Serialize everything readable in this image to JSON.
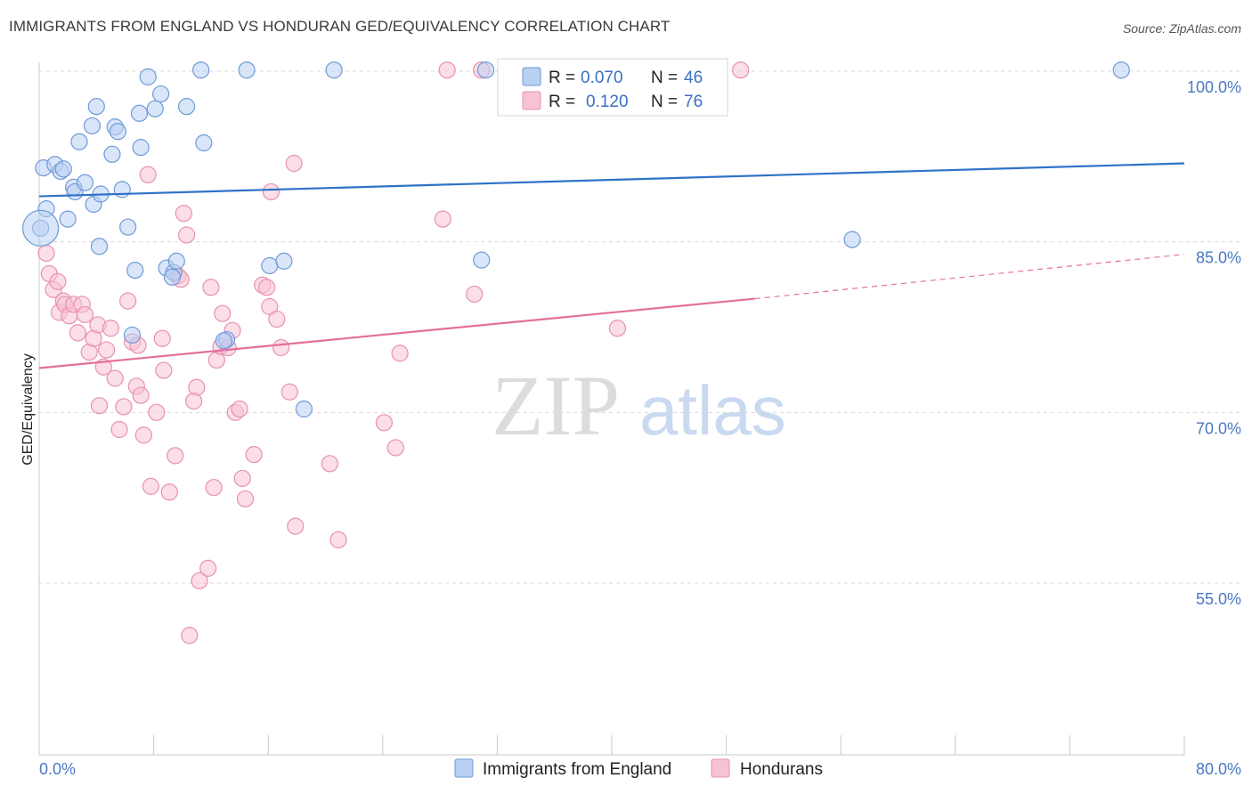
{
  "title": "IMMIGRANTS FROM ENGLAND VS HONDURAN GED/EQUIVALENCY CORRELATION CHART",
  "source": "Source: ZipAtlas.com",
  "watermark": {
    "zip": "ZIP",
    "atlas": "atlas"
  },
  "colors": {
    "blue_fill": "#b9d0f2",
    "blue_stroke": "#6f9ad8",
    "blue_line": "#2f72c8",
    "pink_fill": "#f7c2d3",
    "pink_stroke": "#e891ae",
    "pink_line": "#e46f9a",
    "grid": "#d8d8d8",
    "axis_label": "#4a78c2"
  },
  "legend": {
    "rows": [
      {
        "r_label": "R =",
        "r_value": "0.070",
        "n_label": "N =",
        "n_value": "46",
        "series": "blue"
      },
      {
        "r_label": "R =",
        "r_value": "0.120",
        "n_label": "N =",
        "n_value": "76",
        "series": "pink"
      }
    ]
  },
  "chart_data": {
    "type": "scatter",
    "xlabel": "",
    "ylabel": "GED/Equivalency",
    "xlim": [
      0,
      80
    ],
    "ylim": [
      40,
      102
    ],
    "x_tick_labels": [
      "0.0%",
      "80.0%"
    ],
    "y_ticks": [
      55,
      70,
      85,
      100
    ],
    "y_tick_labels": [
      "55.0%",
      "70.0%",
      "85.0%",
      "100.0%"
    ],
    "grid": true,
    "legend_placement": "top-center",
    "series": [
      {
        "name": "Immigrants from England",
        "color": "blue",
        "trend": {
          "x0": 0,
          "y0": 89.0,
          "x1": 80,
          "y1": 91.9
        },
        "points": [
          [
            0.3,
            91.5
          ],
          [
            1.1,
            91.8
          ],
          [
            1.5,
            91.2
          ],
          [
            1.7,
            91.4
          ],
          [
            2.4,
            89.8
          ],
          [
            2.5,
            89.4
          ],
          [
            3.2,
            90.2
          ],
          [
            2.8,
            93.8
          ],
          [
            3.7,
            95.2
          ],
          [
            4.0,
            96.9
          ],
          [
            3.8,
            88.3
          ],
          [
            4.3,
            89.2
          ],
          [
            4.2,
            84.6
          ],
          [
            5.1,
            92.7
          ],
          [
            5.3,
            95.1
          ],
          [
            5.5,
            94.7
          ],
          [
            5.8,
            89.6
          ],
          [
            6.2,
            86.3
          ],
          [
            6.7,
            82.5
          ],
          [
            7.0,
            96.3
          ],
          [
            7.1,
            93.3
          ],
          [
            7.6,
            99.5
          ],
          [
            8.1,
            96.7
          ],
          [
            8.5,
            98.0
          ],
          [
            8.9,
            82.7
          ],
          [
            9.4,
            82.3
          ],
          [
            9.6,
            83.3
          ],
          [
            10.3,
            96.9
          ],
          [
            11.3,
            100.1
          ],
          [
            11.5,
            93.7
          ],
          [
            13.1,
            76.4
          ],
          [
            14.5,
            100.1
          ],
          [
            16.1,
            82.9
          ],
          [
            17.1,
            83.3
          ],
          [
            18.5,
            70.3
          ],
          [
            20.6,
            100.1
          ],
          [
            31.2,
            100.1
          ],
          [
            30.9,
            83.4
          ],
          [
            75.6,
            100.1
          ],
          [
            56.8,
            85.2
          ],
          [
            0.1,
            86.2
          ],
          [
            6.5,
            76.8
          ],
          [
            12.9,
            76.3
          ],
          [
            0.5,
            87.9
          ],
          [
            2.0,
            87.0
          ],
          [
            9.3,
            81.9
          ]
        ]
      },
      {
        "name": "Hondurans",
        "color": "pink",
        "trend": {
          "x0": 0,
          "y0": 73.9,
          "x1": 50,
          "y1": 80.0,
          "dash_x1": 80,
          "dash_y1": 83.9
        },
        "points": [
          [
            0.5,
            84.0
          ],
          [
            0.7,
            82.2
          ],
          [
            1.0,
            80.8
          ],
          [
            1.3,
            81.5
          ],
          [
            1.4,
            78.8
          ],
          [
            1.7,
            79.8
          ],
          [
            1.8,
            79.5
          ],
          [
            2.1,
            78.5
          ],
          [
            2.4,
            79.5
          ],
          [
            2.7,
            77.0
          ],
          [
            3.0,
            79.5
          ],
          [
            3.2,
            78.6
          ],
          [
            3.5,
            75.3
          ],
          [
            3.8,
            76.5
          ],
          [
            4.1,
            77.7
          ],
          [
            4.2,
            70.6
          ],
          [
            4.5,
            74.0
          ],
          [
            4.7,
            75.5
          ],
          [
            5.0,
            77.4
          ],
          [
            5.3,
            73.0
          ],
          [
            5.6,
            68.5
          ],
          [
            5.9,
            70.5
          ],
          [
            6.2,
            79.8
          ],
          [
            6.5,
            76.2
          ],
          [
            6.8,
            72.3
          ],
          [
            7.1,
            71.5
          ],
          [
            7.3,
            68.0
          ],
          [
            7.6,
            90.9
          ],
          [
            7.8,
            63.5
          ],
          [
            8.2,
            70.0
          ],
          [
            8.6,
            76.5
          ],
          [
            8.7,
            73.7
          ],
          [
            9.1,
            63.0
          ],
          [
            9.5,
            66.2
          ],
          [
            9.7,
            82.0
          ],
          [
            9.9,
            81.7
          ],
          [
            10.1,
            87.5
          ],
          [
            10.3,
            85.6
          ],
          [
            10.5,
            50.4
          ],
          [
            11.0,
            72.2
          ],
          [
            11.2,
            55.2
          ],
          [
            11.8,
            56.3
          ],
          [
            12.0,
            81.0
          ],
          [
            12.2,
            63.4
          ],
          [
            12.4,
            74.6
          ],
          [
            12.7,
            75.8
          ],
          [
            12.8,
            78.7
          ],
          [
            13.2,
            75.7
          ],
          [
            13.5,
            77.2
          ],
          [
            13.7,
            70.0
          ],
          [
            14.0,
            70.3
          ],
          [
            14.2,
            64.2
          ],
          [
            14.4,
            62.4
          ],
          [
            15.0,
            66.3
          ],
          [
            15.6,
            81.2
          ],
          [
            15.9,
            81.0
          ],
          [
            16.1,
            79.3
          ],
          [
            16.2,
            89.4
          ],
          [
            16.6,
            78.2
          ],
          [
            16.9,
            75.7
          ],
          [
            17.5,
            71.8
          ],
          [
            17.8,
            91.9
          ],
          [
            17.9,
            60.0
          ],
          [
            20.3,
            65.5
          ],
          [
            20.9,
            58.8
          ],
          [
            24.1,
            69.1
          ],
          [
            24.9,
            66.9
          ],
          [
            25.2,
            75.2
          ],
          [
            28.2,
            87.0
          ],
          [
            28.5,
            100.1
          ],
          [
            30.4,
            80.4
          ],
          [
            30.9,
            100.1
          ],
          [
            40.4,
            77.4
          ],
          [
            49.0,
            100.1
          ],
          [
            10.8,
            71.0
          ],
          [
            6.9,
            75.9
          ]
        ]
      }
    ]
  },
  "bottom_legend": [
    {
      "label": "Immigrants from England",
      "color": "blue"
    },
    {
      "label": "Hondurans",
      "color": "pink"
    }
  ]
}
